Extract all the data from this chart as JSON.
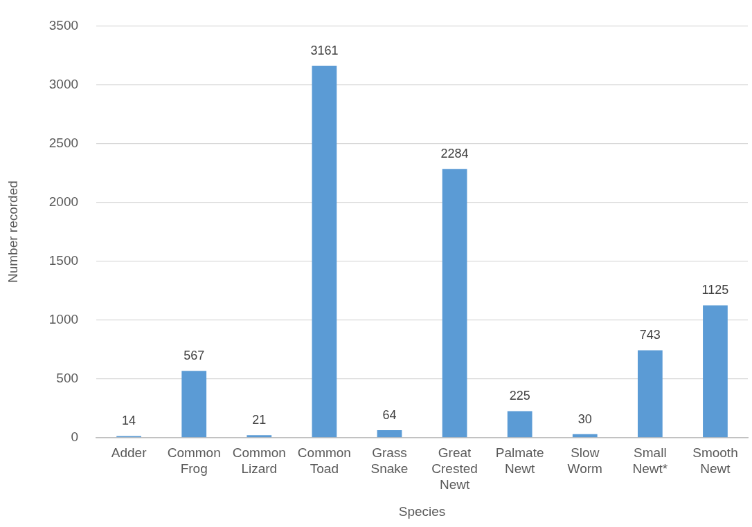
{
  "chart_data": {
    "type": "bar",
    "xlabel": "Species",
    "ylabel": "Number recorded",
    "categories": [
      "Adder",
      "Common Frog",
      "Common Lizard",
      "Common Toad",
      "Grass Snake",
      "Great Crested Newt",
      "Palmate Newt",
      "Slow Worm",
      "Small Newt*",
      "Smooth Newt"
    ],
    "values": [
      14,
      567,
      21,
      3161,
      64,
      2284,
      225,
      30,
      743,
      1125
    ],
    "color": "#5b9bd5",
    "ylim": [
      0,
      3500
    ],
    "yticks": [
      0,
      500,
      1000,
      1500,
      2000,
      2500,
      3000,
      3500
    ],
    "grid": "y",
    "data_labels": true
  }
}
